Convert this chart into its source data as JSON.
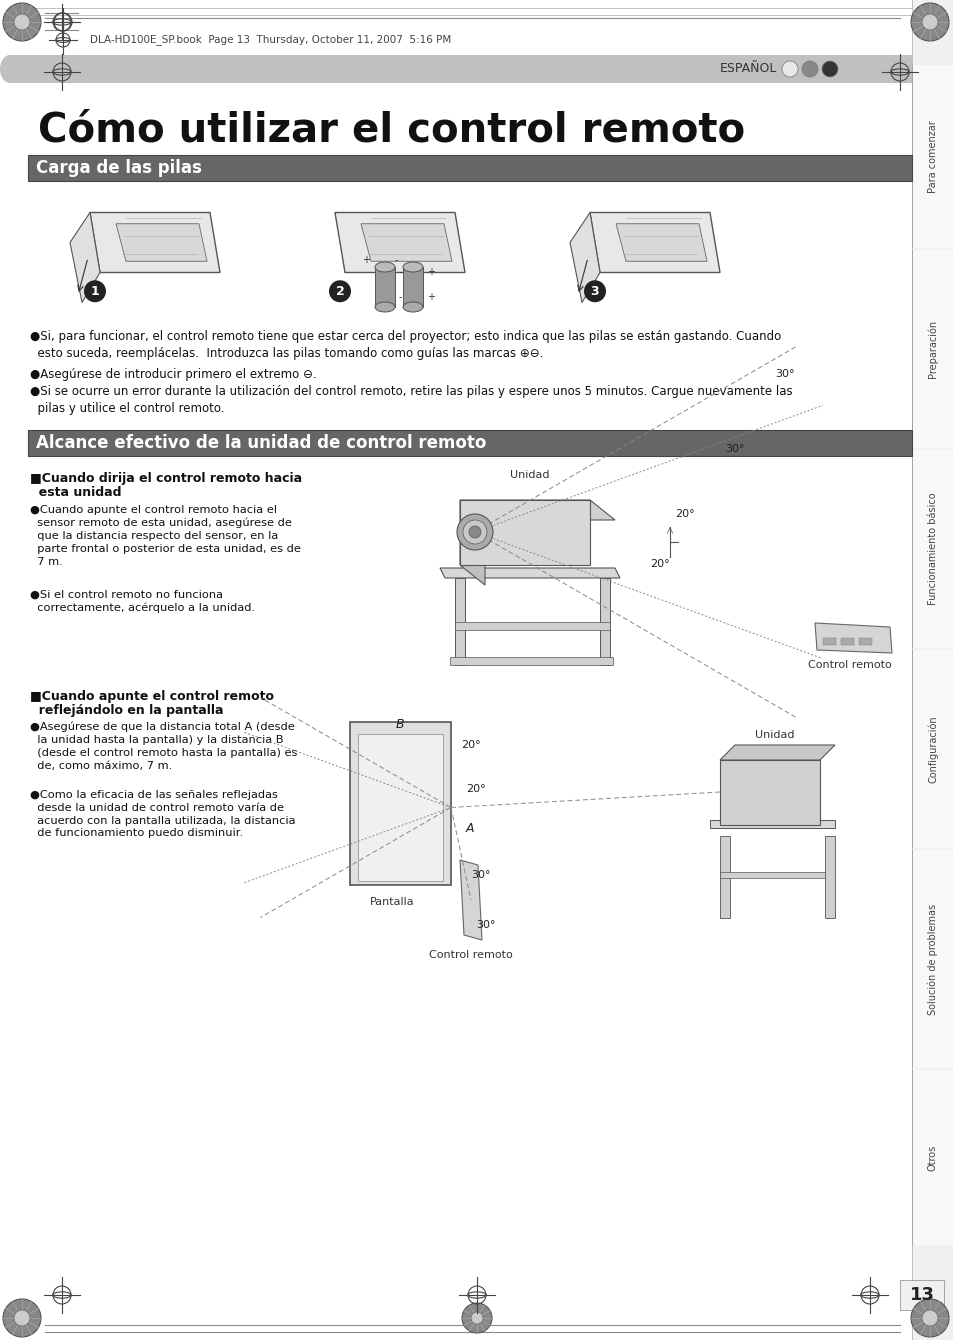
{
  "page_bg": "#ffffff",
  "header_text": "DLA-HD100E_SP.book  Page 13  Thursday, October 11, 2007  5:16 PM",
  "espanol_text": "ESPAÑOL",
  "main_title": "Cómo utilizar el control remoto",
  "section1_title": "Carga de las pilas",
  "section2_title": "Alcance efectivo de la unidad de control remoto",
  "bullet1": "●Si, para funcionar, el control remoto tiene que estar cerca del proyector; esto indica que las pilas se están gastando. Cuando\n  esto suceda, reemplácelas.  Introduzca las pilas tomando como guías las marcas ⊕⊖.",
  "bullet2": "●Asegúrese de introducir primero el extremo ⊖.",
  "bullet3": "●Si se ocurre un error durante la utilización del control remoto, retire las pilas y espere unos 5 minutos. Cargue nuevamente las\n  pilas y utilice el control remoto.",
  "sub1_head1": "■Cuando dirija el control remoto hacia",
  "sub1_head2": "  esta unidad",
  "sub1_b1": "●Cuando apunte el control remoto hacia el\n  sensor remoto de esta unidad, asegúrese de\n  que la distancia respecto del sensor, en la\n  parte frontal o posterior de esta unidad, es de\n  7 m.",
  "sub1_b2": "●Si el control remoto no funciona\n  correctamente, acérquelo a la unidad.",
  "sub2_head1": "■Cuando apunte el control remoto",
  "sub2_head2": "  reflejándolo en la pantalla",
  "sub2_b1": "●Asegúrese de que la distancia total A (desde\n  la unidad hasta la pantalla) y la distancia B\n  (desde el control remoto hasta la pantalla) es\n  de, como máximo, 7 m.",
  "sub2_b2": "●Como la eficacia de las señales reflejadas\n  desde la unidad de control remoto varía de\n  acuerdo con la pantalla utilizada, la distancia\n  de funcionamiento puedo disminuir.",
  "label_unidad1": "Unidad",
  "label_control_remoto1": "Control remoto",
  "label_pantalla": "Pantalla",
  "label_unidad2": "Unidad",
  "label_control_remoto2": "Control remoto",
  "sidebar_labels": [
    "Para comenzar",
    "Preparación",
    "Funcionamiento básico",
    "Configuración",
    "Solución de problemas",
    "Otros"
  ],
  "page_number": "13",
  "gray_bar_color": "#c8c8c8",
  "section_bar_color": "#666666",
  "sidebar_bg": "#e0e0e0",
  "sidebar_divider": "#bbbbbb"
}
